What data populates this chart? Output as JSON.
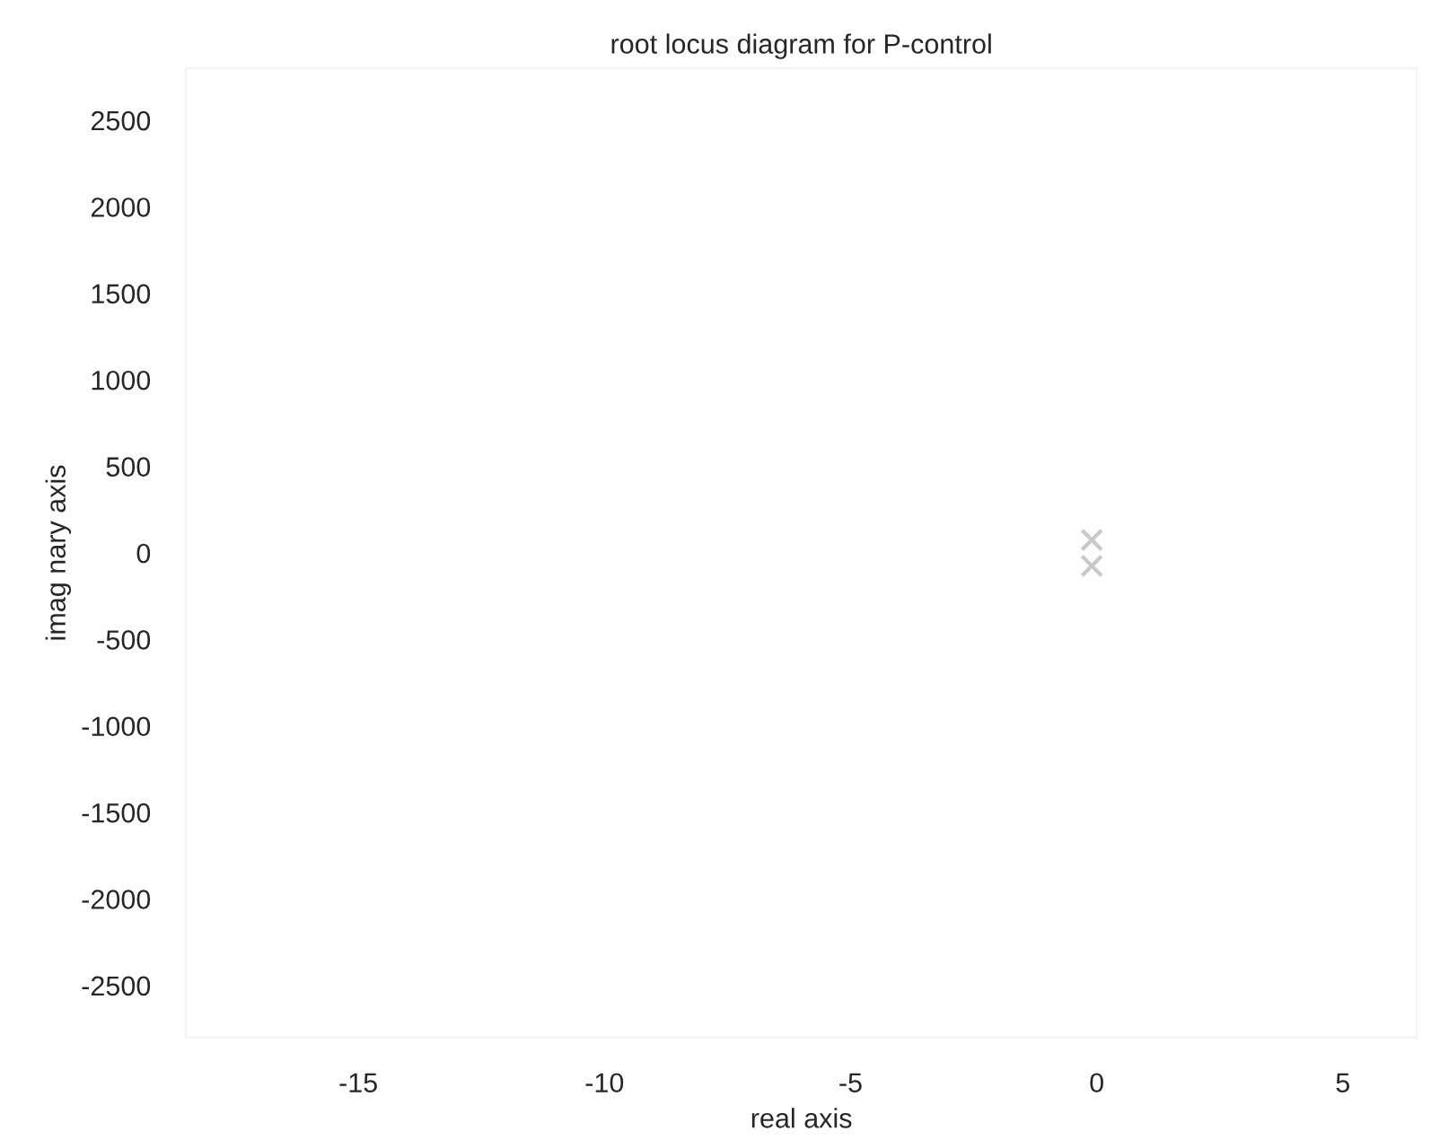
{
  "chart_data": {
    "type": "scatter",
    "title": "root locus diagram for P-control",
    "xlabel": "real axis",
    "ylabel": "imag nary axis",
    "x": [
      -0.1,
      -0.1
    ],
    "series": [
      {
        "color": "#c8c8c8",
        "values": [
          75,
          -75
        ]
      }
    ],
    "marker": "cross",
    "xlim": [
      -18.5,
      6.5
    ],
    "ylim": [
      -2800,
      2800
    ],
    "xticks": [
      -15,
      -10,
      -5,
      0,
      5
    ],
    "yticks": [
      -2500,
      -2000,
      -1500,
      -1000,
      -500,
      0,
      500,
      1000,
      1500,
      2000,
      2500
    ],
    "grid": false,
    "legend": false
  }
}
